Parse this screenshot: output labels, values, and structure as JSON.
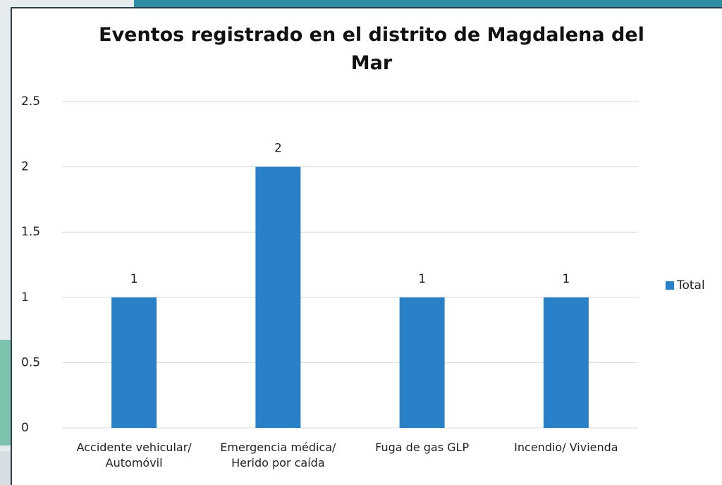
{
  "chart_data": {
    "type": "bar",
    "title": "Eventos registrado en el distrito de Magdalena del Mar",
    "categories": [
      "Accidente vehicular/ Automóvil",
      "Emergencia médica/ Herido por caída",
      "Fuga de gas GLP",
      "Incendio/  Vivienda"
    ],
    "series": [
      {
        "name": "Total",
        "color": "#2a80c6",
        "values": [
          1,
          2,
          1,
          1
        ]
      }
    ],
    "ylim": [
      0,
      2.5
    ],
    "yticks": [
      0,
      0.5,
      1,
      1.5,
      2,
      2.5
    ],
    "grid": true,
    "legend": "right"
  }
}
